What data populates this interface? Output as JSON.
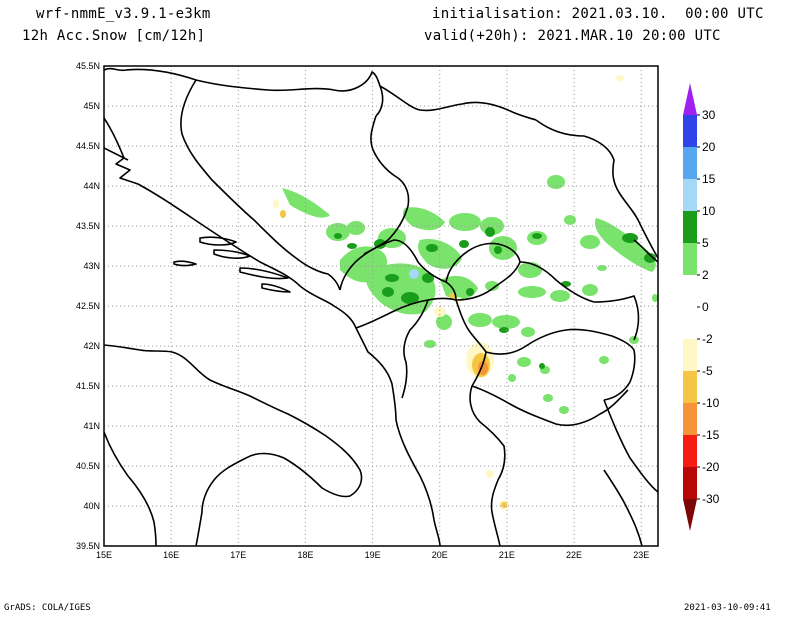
{
  "header": {
    "model": "wrf-nmmE_v3.9.1-e3km",
    "field": "12h Acc.Snow [cm/12h]",
    "init": "initialisation: 2021.03.10.  00:00 UTC",
    "valid": "valid(+20h): 2021.MAR.10 20:00 UTC"
  },
  "map": {
    "lon_range": [
      15,
      23.25
    ],
    "lat_range": [
      39.5,
      45.5
    ],
    "lon_ticks": [
      "15E",
      "16E",
      "17E",
      "18E",
      "19E",
      "20E",
      "21E",
      "22E",
      "23E"
    ],
    "lat_ticks": [
      "45.5N",
      "45N",
      "44.5N",
      "44N",
      "43.5N",
      "43N",
      "42.5N",
      "42N",
      "41.5N",
      "41N",
      "40.5N",
      "40N",
      "39.5N"
    ],
    "grid": true
  },
  "colorbar": {
    "labels": [
      "30",
      "20",
      "15",
      "10",
      "5",
      "2",
      "0",
      "-2",
      "-5",
      "-10",
      "-15",
      "-20",
      "-30"
    ],
    "colors": {
      "above_30": "#a020f0",
      "20_30": "#2f44e8",
      "15_20": "#56a6f0",
      "10_15": "#a3d8f7",
      "5_10": "#1a9d1a",
      "2_5": "#79e36b",
      "m2_2": "#ffffff",
      "m5_m2": "#fff8c4",
      "m10_m5": "#f6c544",
      "m15_m10": "#f6943a",
      "m20_m15": "#f51d12",
      "m30_m20": "#b80707",
      "below_m30": "#7d0606"
    }
  },
  "footer": {
    "left": "GrADS: COLA/IGES",
    "right": "2021-03-10-09:41"
  }
}
